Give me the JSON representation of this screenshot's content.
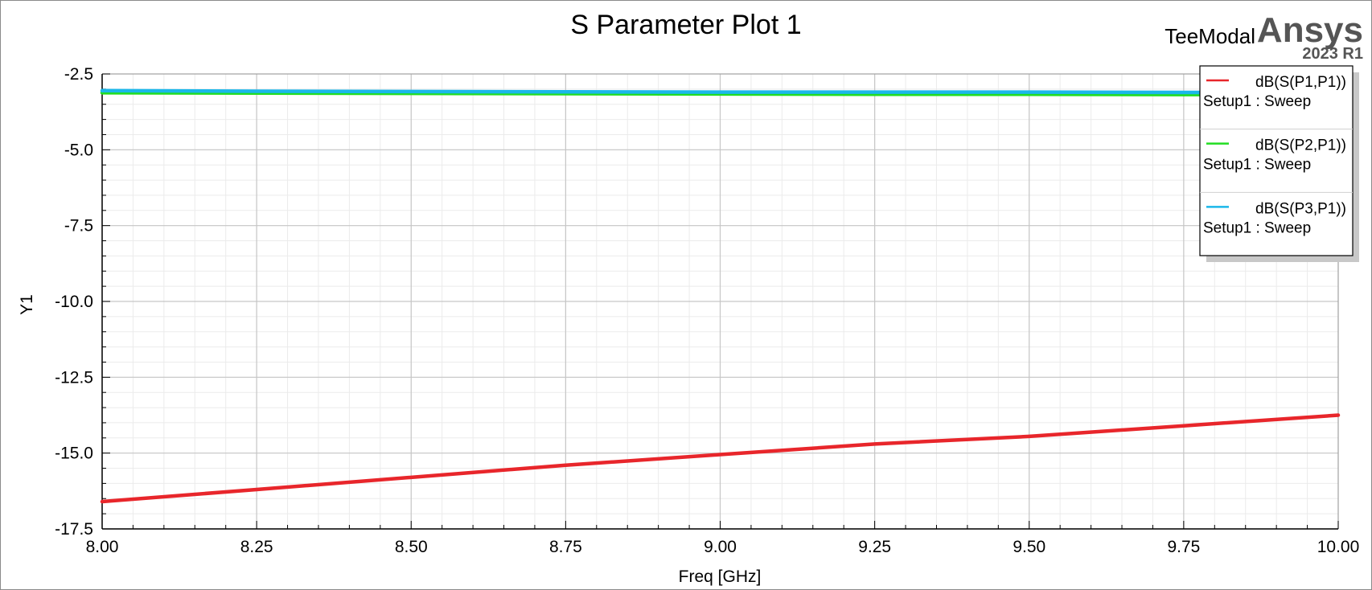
{
  "branding": {
    "product": "TeeModal",
    "vendor": "Ansys",
    "version": "2023 R1"
  },
  "chart_data": {
    "type": "line",
    "title": "S Parameter Plot 1",
    "xlabel": "Freq [GHz]",
    "ylabel": "Y1",
    "xlim": [
      8.0,
      10.0
    ],
    "ylim": [
      -17.5,
      -2.5
    ],
    "x_ticks": [
      "8.00",
      "8.25",
      "8.50",
      "8.75",
      "9.00",
      "9.25",
      "9.50",
      "9.75",
      "10.00"
    ],
    "y_ticks": [
      "-2.5",
      "-5.0",
      "-7.5",
      "-10.0",
      "-12.5",
      "-15.0",
      "-17.5"
    ],
    "grid": true,
    "legend_position": "top-right",
    "x": [
      8.0,
      8.25,
      8.5,
      8.75,
      9.0,
      9.25,
      9.5,
      9.75,
      10.0
    ],
    "series": [
      {
        "name": "dB(S(P1,P1))",
        "sweep": "Setup1 : Sweep",
        "color": "#e8262b",
        "values": [
          -16.6,
          -16.2,
          -15.8,
          -15.4,
          -15.05,
          -14.7,
          -14.45,
          -14.1,
          -13.75
        ]
      },
      {
        "name": "dB(S(P2,P1))",
        "sweep": "Setup1 : Sweep",
        "color": "#22dd22",
        "values": [
          -3.12,
          -3.13,
          -3.14,
          -3.15,
          -3.16,
          -3.17,
          -3.17,
          -3.18,
          -3.18
        ]
      },
      {
        "name": "dB(S(P3,P1))",
        "sweep": "Setup1 : Sweep",
        "color": "#1ab7ea",
        "values": [
          -3.05,
          -3.07,
          -3.08,
          -3.09,
          -3.1,
          -3.1,
          -3.1,
          -3.11,
          -3.11
        ]
      }
    ]
  }
}
